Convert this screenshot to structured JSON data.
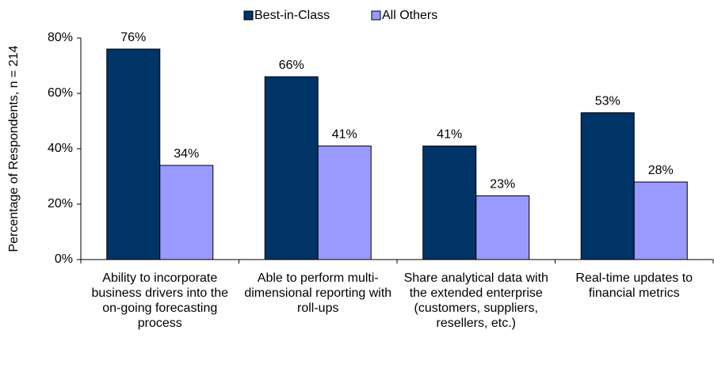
{
  "chart_data": {
    "type": "bar",
    "y_label": "Percentage of Respondents, n = 214",
    "categories": [
      "Ability to incorporate business drivers into the on-going forecasting process",
      "Able to perform multi-dimensional reporting with roll-ups",
      "Share analytical data with the extended enterprise (customers, suppliers, resellers, etc.)",
      "Real-time updates to financial metrics"
    ],
    "series": [
      {
        "name": "Best-in-Class",
        "color": "#003366",
        "values": [
          76,
          66,
          41,
          53
        ],
        "value_labels": [
          "76%",
          "66%",
          "41%",
          "53%"
        ]
      },
      {
        "name": "All Others",
        "color": "#9999ff",
        "values": [
          34,
          41,
          23,
          28
        ],
        "value_labels": [
          "34%",
          "41%",
          "23%",
          "28%"
        ]
      }
    ],
    "ylim": [
      0,
      80
    ],
    "yticks": [
      {
        "value": 0,
        "label": "0%"
      },
      {
        "value": 20,
        "label": "20%"
      },
      {
        "value": 40,
        "label": "40%"
      },
      {
        "value": 60,
        "label": "60%"
      },
      {
        "value": 80,
        "label": "80%"
      }
    ],
    "legend": "top",
    "grid": false
  }
}
